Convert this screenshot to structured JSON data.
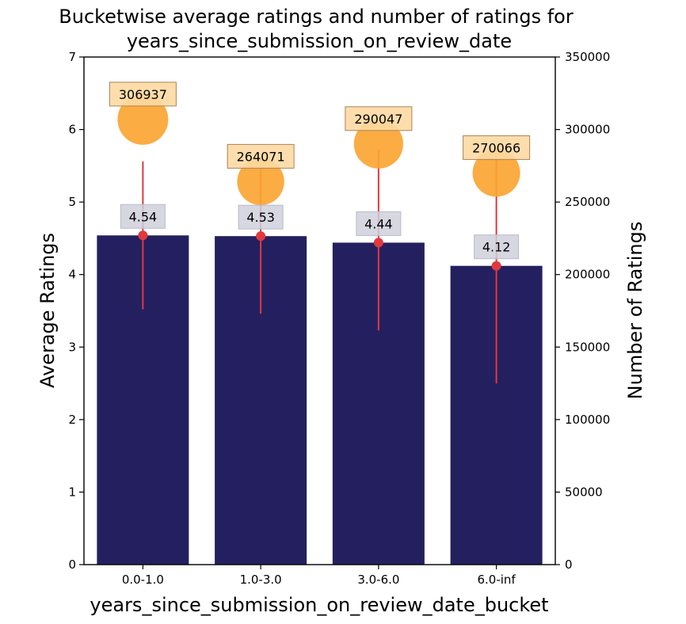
{
  "chart_data": {
    "type": "bar",
    "title_lines": [
      "Bucketwise average ratings and number of ratings for",
      "years_since_submission_on_review_date"
    ],
    "xlabel": "years_since_submission_on_review_date_bucket",
    "ylabel_left": "Average Ratings",
    "ylabel_right": "Number of Ratings",
    "categories": [
      "0.0-1.0",
      "1.0-3.0",
      "3.0-6.0",
      "6.0-inf"
    ],
    "average_ratings": [
      4.54,
      4.53,
      4.44,
      4.12
    ],
    "average_labels": [
      "4.54",
      "4.53",
      "4.44",
      "4.12"
    ],
    "error_low": [
      3.52,
      3.46,
      3.23,
      2.5
    ],
    "error_high": [
      5.56,
      5.6,
      5.72,
      5.74
    ],
    "number_of_ratings": [
      306937,
      264071,
      290047,
      270066
    ],
    "count_labels": [
      "306937",
      "264071",
      "290047",
      "270066"
    ],
    "ylim_left": [
      0,
      7
    ],
    "ylim_right": [
      0,
      350000
    ],
    "yticks_left": [
      "0",
      "1",
      "2",
      "3",
      "4",
      "5",
      "6",
      "7"
    ],
    "yticks_right": [
      "0",
      "50000",
      "100000",
      "150000",
      "200000",
      "250000",
      "300000",
      "350000"
    ],
    "grid": false,
    "colors": {
      "bar": "#24205f",
      "error": "#e0393e",
      "bubble": "#fba532",
      "count_box": "#fdd9a2",
      "avg_box": "#cfd0dc"
    }
  }
}
